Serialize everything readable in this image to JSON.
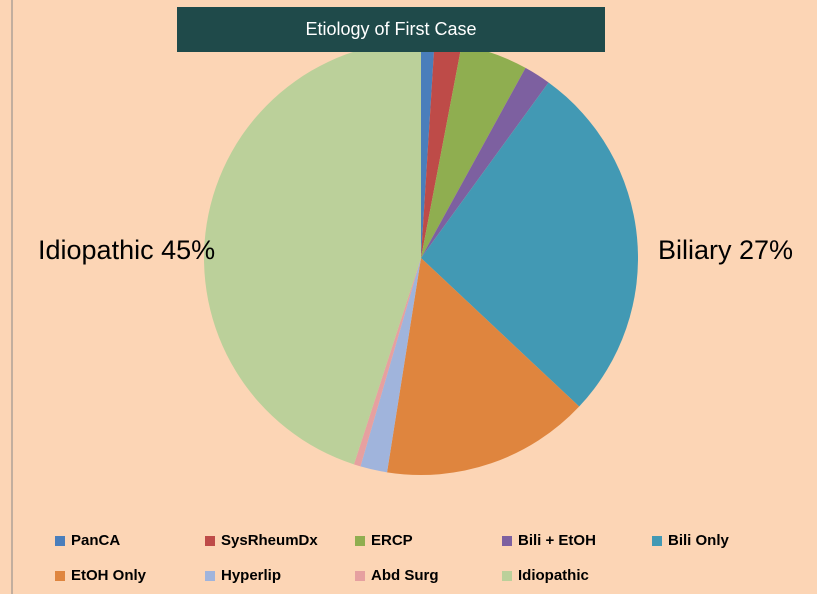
{
  "chart_data": {
    "type": "pie",
    "title": "Etiology of First Case",
    "categories": [
      "PanCA",
      "SysRheumDx",
      "ERCP",
      "Bili + EtOH",
      "Bili Only",
      "EtOH Only",
      "Hyperlip",
      "Abd Surg",
      "Idiopathic"
    ],
    "values": [
      1,
      2,
      5,
      2,
      27,
      15.5,
      2,
      0.5,
      45
    ],
    "colors": [
      "#4a7ebb",
      "#be4b48",
      "#8fae50",
      "#7d60a0",
      "#4299b4",
      "#df853e",
      "#a0b4dc",
      "#e6a0a0",
      "#bbd09a"
    ],
    "annotations": [
      "Idiopathic 45%",
      "Biliary 27%"
    ]
  }
}
